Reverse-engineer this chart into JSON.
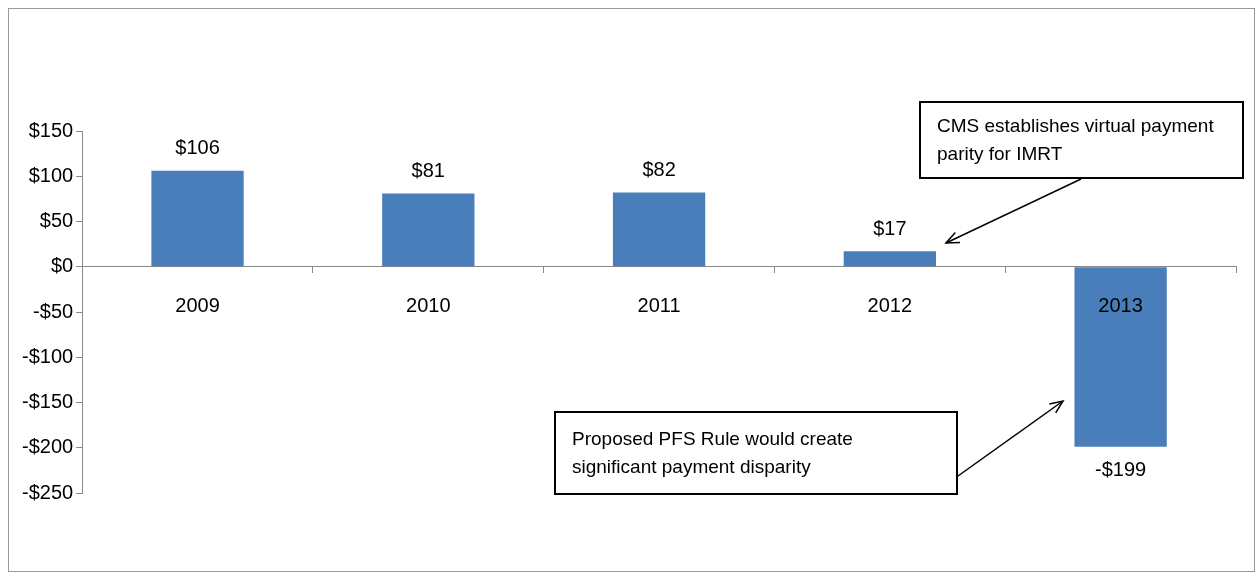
{
  "chart_data": {
    "type": "bar",
    "categories": [
      "2009",
      "2010",
      "2011",
      "2012",
      "2013"
    ],
    "values": [
      106,
      81,
      82,
      17,
      -199
    ],
    "value_labels": [
      "$106",
      "$81",
      "$82",
      "$17",
      "-$199"
    ],
    "color": "#4a7ebb",
    "ylim": [
      -250,
      150
    ],
    "yticks": [
      {
        "value": 150,
        "label": "$150"
      },
      {
        "value": 100,
        "label": "$100"
      },
      {
        "value": 50,
        "label": "$50"
      },
      {
        "value": 0,
        "label": "$0"
      },
      {
        "value": -50,
        "label": "-$50"
      },
      {
        "value": -100,
        "label": "-$100"
      },
      {
        "value": -150,
        "label": "-$150"
      },
      {
        "value": -200,
        "label": "-$200"
      },
      {
        "value": -250,
        "label": "-$250"
      }
    ],
    "grid": false,
    "legend": false,
    "annotations": [
      "CMS establishes virtual payment parity for IMRT",
      "Proposed PFS Rule would create significant payment disparity"
    ]
  }
}
